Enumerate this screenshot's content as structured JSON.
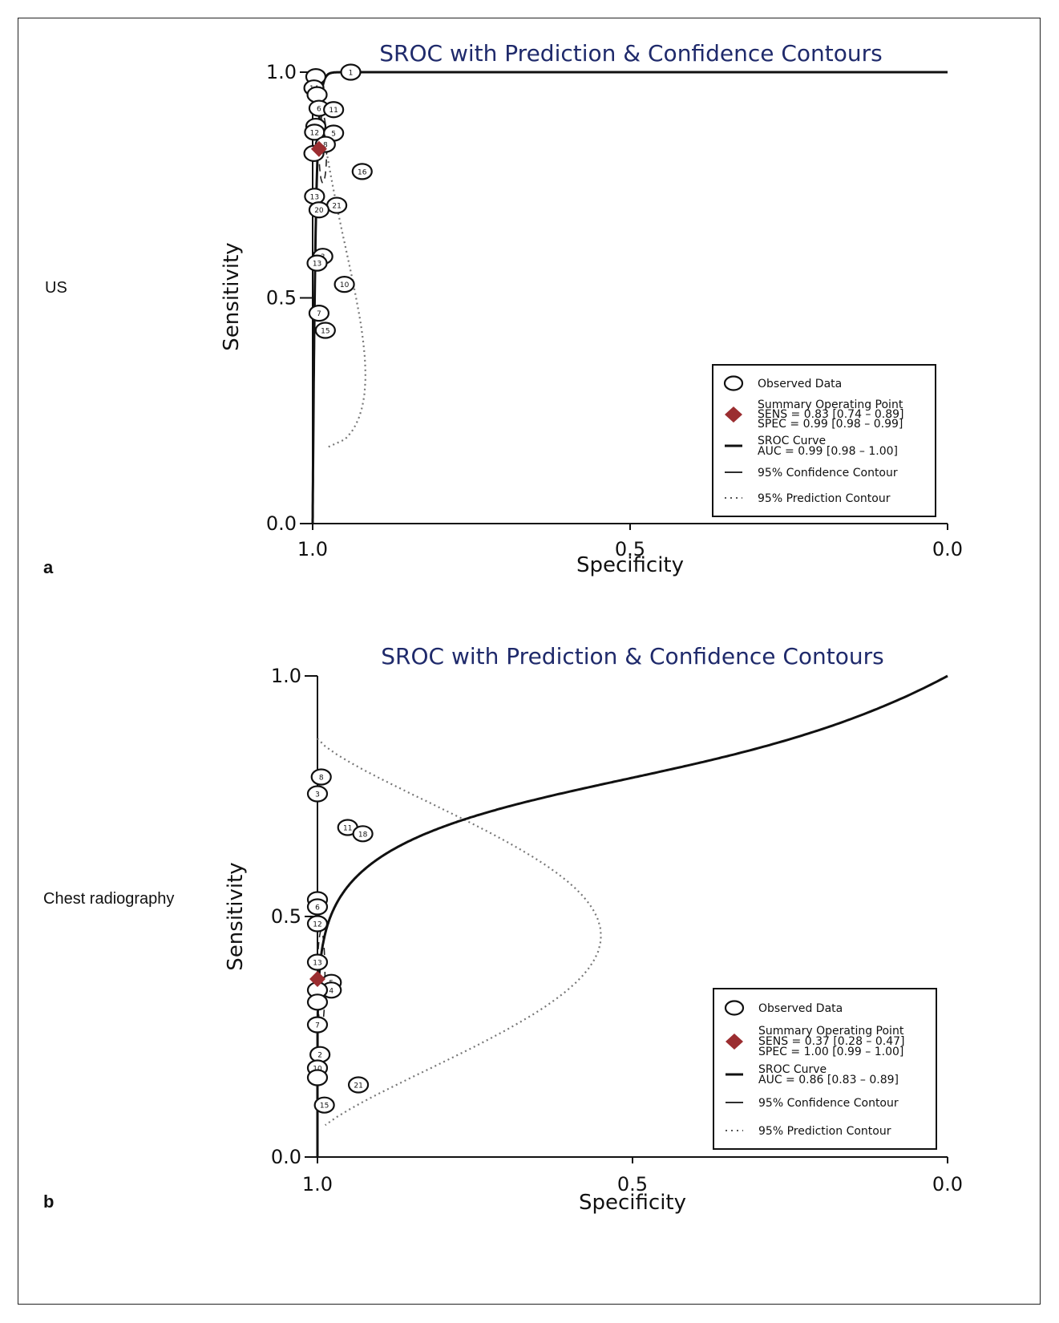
{
  "chart_data": [
    {
      "type": "scatter",
      "panel": "a",
      "row_label": "US",
      "title": "SROC with Prediction & Confidence Contours",
      "xlabel": "Specificity",
      "ylabel": "Sensitivity",
      "xlim": [
        1.0,
        0.0
      ],
      "ylim": [
        0.0,
        1.0
      ],
      "x_ticks": [
        "1.0",
        "0.5",
        "0.0"
      ],
      "y_ticks": [
        "0.0",
        "0.5",
        "1.0"
      ],
      "legend_position": "bottom-right",
      "legend": {
        "observed": "Observed Data",
        "summary_title": "Summary Operating Point",
        "summary_sens": "SENS = 0.83 [0.74 – 0.89]",
        "summary_spec": "SPEC = 0.99 [0.98 – 0.99]",
        "sroc_title": "SROC Curve",
        "sroc_auc": "AUC = 0.99 [0.98 – 1.00]",
        "confidence": "95% Confidence Contour",
        "prediction": "95% Prediction Contour"
      },
      "summary_point": {
        "spec": 0.99,
        "sens": 0.83
      },
      "colors": {
        "summary": "#9b2d30",
        "title": "#1f2a6b"
      },
      "points": [
        {
          "id": "1",
          "spec": 0.94,
          "sens": 1.0
        },
        {
          "id": "",
          "spec": 0.995,
          "sens": 0.99
        },
        {
          "id": "14",
          "spec": 0.998,
          "sens": 0.965
        },
        {
          "id": "",
          "spec": 0.993,
          "sens": 0.95
        },
        {
          "id": "6",
          "spec": 0.99,
          "sens": 0.92
        },
        {
          "id": "11",
          "spec": 0.967,
          "sens": 0.917
        },
        {
          "id": "",
          "spec": 0.995,
          "sens": 0.88
        },
        {
          "id": "12",
          "spec": 0.997,
          "sens": 0.867
        },
        {
          "id": "5",
          "spec": 0.967,
          "sens": 0.865
        },
        {
          "id": "8",
          "spec": 0.98,
          "sens": 0.84
        },
        {
          "id": "",
          "spec": 0.998,
          "sens": 0.82
        },
        {
          "id": "16",
          "spec": 0.922,
          "sens": 0.78
        },
        {
          "id": "13",
          "spec": 0.997,
          "sens": 0.725
        },
        {
          "id": "21",
          "spec": 0.962,
          "sens": 0.705
        },
        {
          "id": "20",
          "spec": 0.99,
          "sens": 0.695
        },
        {
          "id": "3",
          "spec": 0.984,
          "sens": 0.592
        },
        {
          "id": "13",
          "spec": 0.993,
          "sens": 0.577
        },
        {
          "id": "10",
          "spec": 0.95,
          "sens": 0.53
        },
        {
          "id": "7",
          "spec": 0.99,
          "sens": 0.466
        },
        {
          "id": "15",
          "spec": 0.98,
          "sens": 0.428
        }
      ]
    },
    {
      "type": "scatter",
      "panel": "b",
      "row_label": "Chest radiography",
      "title": "SROC with Prediction & Confidence Contours",
      "xlabel": "Specificity",
      "ylabel": "Sensitivity",
      "xlim": [
        1.0,
        0.0
      ],
      "ylim": [
        0.0,
        1.0
      ],
      "x_ticks": [
        "1.0",
        "0.5",
        "0.0"
      ],
      "y_ticks": [
        "0.0",
        "0.5",
        "1.0"
      ],
      "legend_position": "bottom-right",
      "legend": {
        "observed": "Observed Data",
        "summary_title": "Summary Operating Point",
        "summary_sens": "SENS = 0.37 [0.28 – 0.47]",
        "summary_spec": "SPEC = 1.00 [0.99 – 1.00]",
        "sroc_title": "SROC Curve",
        "sroc_auc": "AUC = 0.86 [0.83 – 0.89]",
        "confidence": "95% Confidence Contour",
        "prediction": "95% Prediction Contour"
      },
      "summary_point": {
        "spec": 1.0,
        "sens": 0.37
      },
      "colors": {
        "summary": "#9b2d30",
        "title": "#1f2a6b"
      },
      "points": [
        {
          "id": "8",
          "spec": 0.994,
          "sens": 0.79
        },
        {
          "id": "3",
          "spec": 1.0,
          "sens": 0.755
        },
        {
          "id": "11",
          "spec": 0.952,
          "sens": 0.685
        },
        {
          "id": "18",
          "spec": 0.928,
          "sens": 0.672
        },
        {
          "id": "",
          "spec": 1.0,
          "sens": 0.535
        },
        {
          "id": "6",
          "spec": 1.0,
          "sens": 0.52
        },
        {
          "id": "12",
          "spec": 1.0,
          "sens": 0.485
        },
        {
          "id": "13",
          "spec": 1.0,
          "sens": 0.405
        },
        {
          "id": "5",
          "spec": 0.978,
          "sens": 0.363
        },
        {
          "id": "4",
          "spec": 0.978,
          "sens": 0.347
        },
        {
          "id": "",
          "spec": 1.0,
          "sens": 0.347
        },
        {
          "id": "",
          "spec": 1.0,
          "sens": 0.322
        },
        {
          "id": "7",
          "spec": 1.0,
          "sens": 0.275
        },
        {
          "id": "2",
          "spec": 0.996,
          "sens": 0.213
        },
        {
          "id": "10",
          "spec": 1.0,
          "sens": 0.185
        },
        {
          "id": "",
          "spec": 1.0,
          "sens": 0.165
        },
        {
          "id": "21",
          "spec": 0.935,
          "sens": 0.15
        },
        {
          "id": "15",
          "spec": 0.989,
          "sens": 0.108
        }
      ]
    }
  ]
}
